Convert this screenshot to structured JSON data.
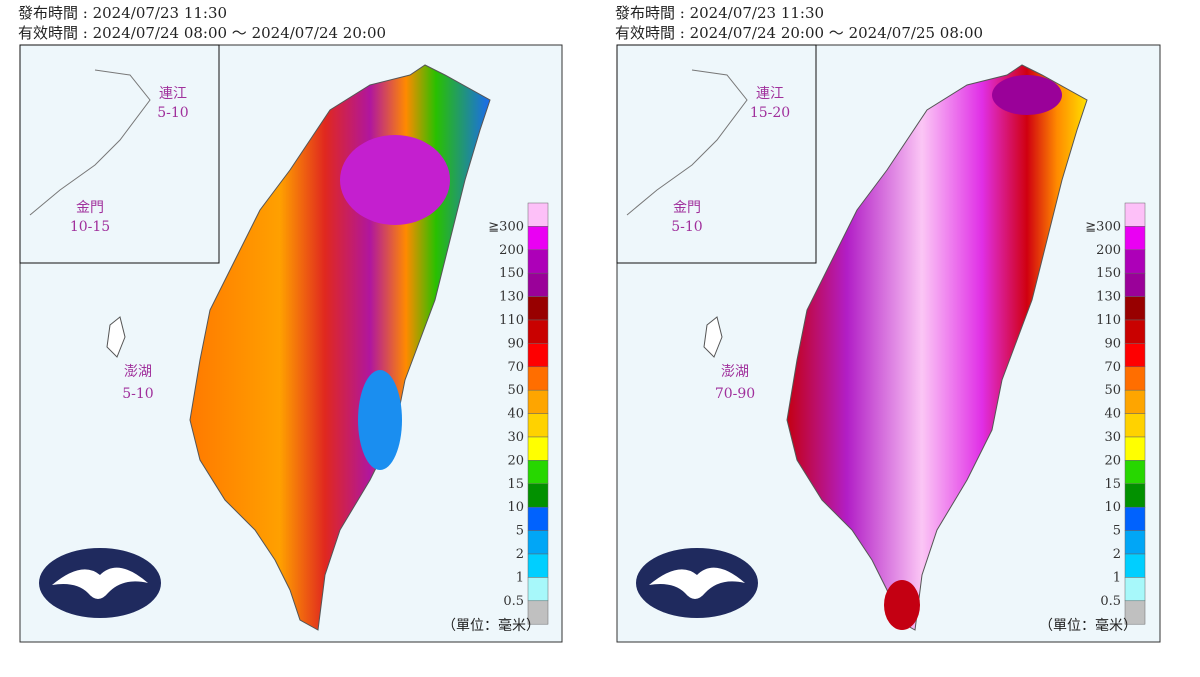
{
  "panels": [
    {
      "issued": "發布時間 : 2024/07/23 11:30",
      "valid": "有效時間 : 2024/07/24 08:00 ～ 2024/07/24 20:00",
      "regions": [
        {
          "name": "連江",
          "range": "5-10"
        },
        {
          "name": "金門",
          "range": "10-15"
        },
        {
          "name": "澎湖",
          "range": "5-10"
        }
      ],
      "unit": "（單位：毫米）"
    },
    {
      "issued": "發布時間 : 2024/07/23 11:30",
      "valid": "有效時間 : 2024/07/24 20:00 ～ 2024/07/25 08:00",
      "regions": [
        {
          "name": "連江",
          "range": "15-20"
        },
        {
          "name": "金門",
          "range": "5-10"
        },
        {
          "name": "澎湖",
          "range": "70-90"
        }
      ],
      "unit": "（單位：毫米）"
    }
  ],
  "legend": {
    "labels": [
      "≧300",
      "200",
      "150",
      "130",
      "110",
      "90",
      "70",
      "50",
      "40",
      "30",
      "20",
      "15",
      "10",
      "5",
      "2",
      "1",
      "0.5"
    ],
    "colors": [
      "#fdc0f8",
      "#ea00f3",
      "#ad00b8",
      "#9a0199",
      "#980000",
      "#c90100",
      "#fe0001",
      "#ff6e00",
      "#fea500",
      "#ffd200",
      "#ffff00",
      "#27d700",
      "#029100",
      "#0062fe",
      "#01a6f6",
      "#00cfff",
      "#a7f8fa",
      "#c0c0c0"
    ]
  }
}
